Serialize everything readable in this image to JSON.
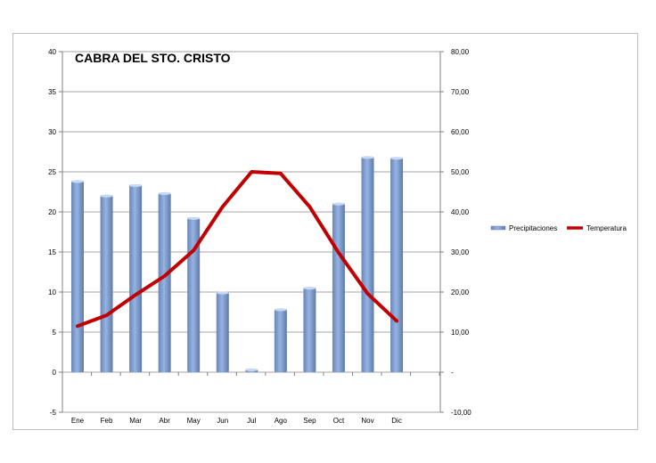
{
  "chart_data": {
    "type": "bar+line",
    "title": "CABRA DEL STO. CRISTO",
    "categories": [
      "Ene",
      "Feb",
      "Mar",
      "Abr",
      "May",
      "Jun",
      "Jul",
      "Ago",
      "Sep",
      "Oct",
      "Nov",
      "Dic"
    ],
    "series": [
      {
        "name": "Precipitaciones",
        "type": "bar",
        "axis": "left",
        "color": "#7f9fd0",
        "values": [
          23.9,
          22.1,
          23.4,
          22.4,
          19.3,
          10.0,
          0.4,
          7.9,
          10.6,
          21.1,
          26.9,
          26.8
        ]
      },
      {
        "name": "Temperatura",
        "type": "line",
        "axis": "right",
        "color": "#c00000",
        "values": [
          11.5,
          14.2,
          19.3,
          24.0,
          30.4,
          41.3,
          50.0,
          49.6,
          41.3,
          29.8,
          19.6,
          12.8
        ]
      }
    ],
    "left_axis": {
      "ylim": [
        -5,
        40
      ],
      "ticks": [
        "-5",
        "0",
        "5",
        "10",
        "15",
        "20",
        "25",
        "30",
        "35",
        "40"
      ]
    },
    "right_axis": {
      "ylim": [
        -10,
        80
      ],
      "ticks": [
        "-10,00",
        "-",
        "10,00",
        "20,00",
        "30,00",
        "40,00",
        "50,00",
        "60,00",
        "70,00",
        "80,00"
      ]
    },
    "grid": true,
    "legend": "right"
  }
}
